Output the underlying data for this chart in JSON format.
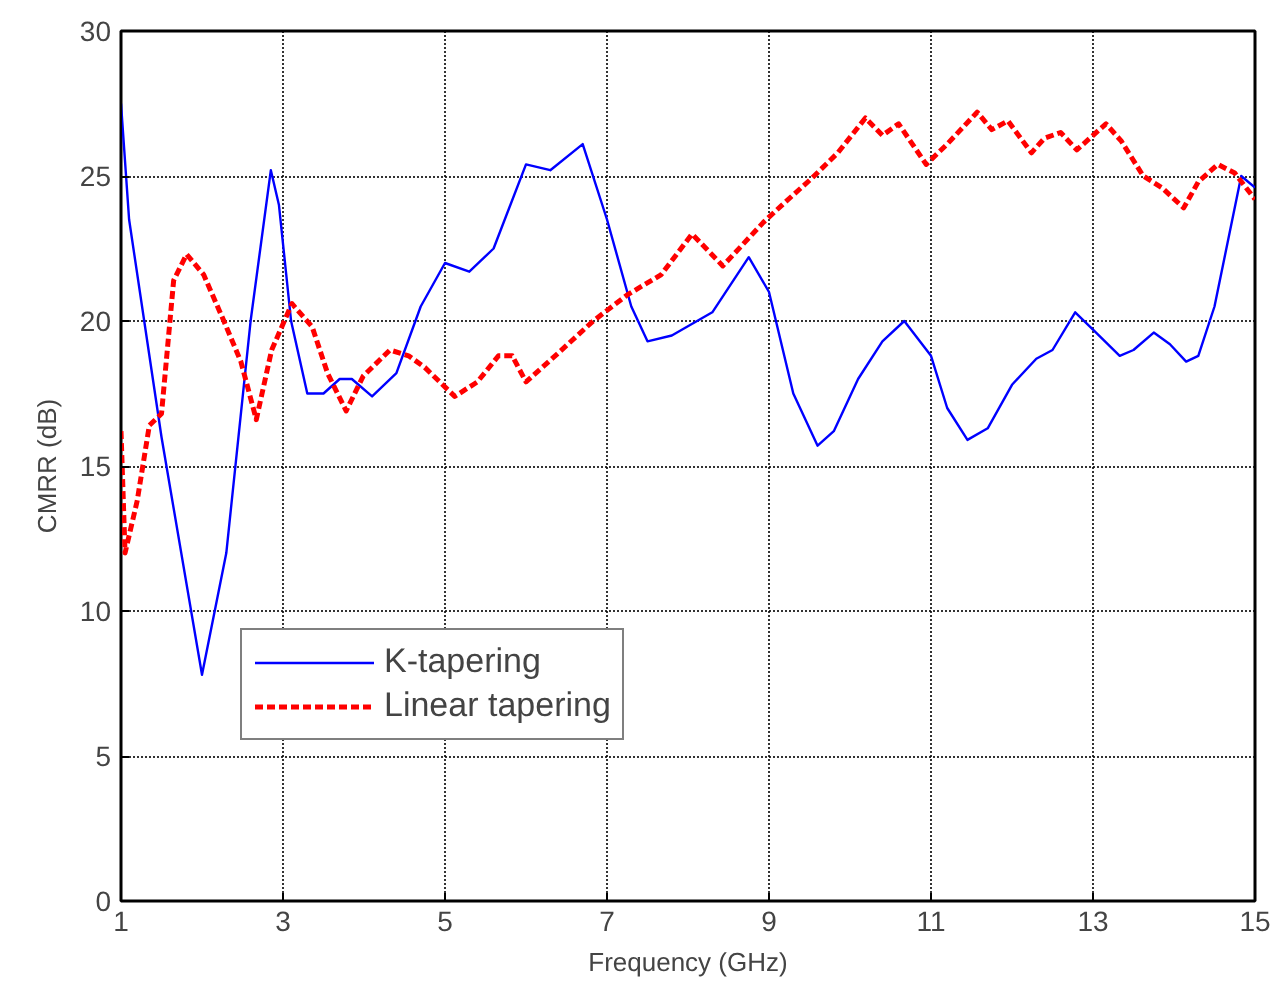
{
  "chart_data": {
    "type": "line",
    "xlabel": "Frequency (GHz)",
    "ylabel": "CMRR (dB)",
    "xlim": [
      1,
      15
    ],
    "ylim": [
      0,
      30
    ],
    "xticks": [
      1,
      3,
      5,
      7,
      9,
      11,
      13,
      15
    ],
    "yticks": [
      0,
      5,
      10,
      15,
      20,
      25,
      30
    ],
    "grid": true,
    "legend": "bottom left",
    "series": [
      {
        "name": "K-tapering",
        "color": "#0000ff",
        "line_style": "solid",
        "x": [
          1.0,
          1.1,
          1.5,
          2.0,
          2.3,
          2.6,
          2.85,
          2.95,
          3.1,
          3.3,
          3.5,
          3.7,
          3.85,
          4.1,
          4.4,
          4.7,
          5.0,
          5.3,
          5.6,
          6.0,
          6.3,
          6.7,
          7.0,
          7.3,
          7.5,
          7.8,
          8.3,
          8.75,
          9.0,
          9.3,
          9.6,
          9.8,
          10.1,
          10.4,
          10.67,
          11.0,
          11.2,
          11.45,
          11.7,
          12.0,
          12.3,
          12.5,
          12.78,
          13.0,
          13.33,
          13.5,
          13.75,
          13.95,
          14.15,
          14.3,
          14.5,
          14.83,
          15.0
        ],
        "values": [
          27.5,
          23.5,
          16,
          7.8,
          12,
          20,
          25.2,
          24,
          20,
          17.5,
          17.5,
          18,
          18,
          17.4,
          18.2,
          20.5,
          22,
          21.7,
          22.5,
          25.4,
          25.2,
          26.1,
          23.5,
          20.5,
          19.3,
          19.5,
          20.3,
          22.2,
          21,
          17.5,
          15.7,
          16.2,
          18,
          19.3,
          20,
          18.8,
          17,
          15.9,
          16.3,
          17.8,
          18.7,
          19,
          20.3,
          19.7,
          18.8,
          19,
          19.6,
          19.2,
          18.6,
          18.8,
          20.5,
          25,
          24.6
        ]
      },
      {
        "name": "Linear tapering",
        "color": "#ff0000",
        "line_style": "dashed",
        "x": [
          1.0,
          1.05,
          1.2,
          1.35,
          1.5,
          1.65,
          1.81,
          2.02,
          2.27,
          2.48,
          2.67,
          2.86,
          3.11,
          3.36,
          3.55,
          3.78,
          3.99,
          4.32,
          4.55,
          4.75,
          5.12,
          5.4,
          5.66,
          5.83,
          6.0,
          6.4,
          6.83,
          7.25,
          7.67,
          8.05,
          8.43,
          8.93,
          9.2,
          9.52,
          9.85,
          10.19,
          10.4,
          10.6,
          10.94,
          11.2,
          11.57,
          11.75,
          11.95,
          12.24,
          12.4,
          12.6,
          12.8,
          13.16,
          13.35,
          13.62,
          13.85,
          14.12,
          14.3,
          14.54,
          14.75,
          15.0
        ],
        "values": [
          16.2,
          12.0,
          13.8,
          16.4,
          16.8,
          21.4,
          22.3,
          21.6,
          20,
          18.6,
          16.6,
          19,
          20.6,
          19.8,
          18.2,
          16.9,
          18.1,
          19,
          18.8,
          18.4,
          17.4,
          17.9,
          18.8,
          18.8,
          17.9,
          18.9,
          20,
          20.9,
          21.6,
          23,
          21.9,
          23.4,
          24.1,
          24.9,
          25.8,
          27,
          26.4,
          26.8,
          25.4,
          26.1,
          27.2,
          26.6,
          26.9,
          25.8,
          26.3,
          26.5,
          25.9,
          26.8,
          26.2,
          25,
          24.6,
          23.9,
          24.8,
          25.4,
          25.1,
          24.2
        ]
      }
    ]
  }
}
